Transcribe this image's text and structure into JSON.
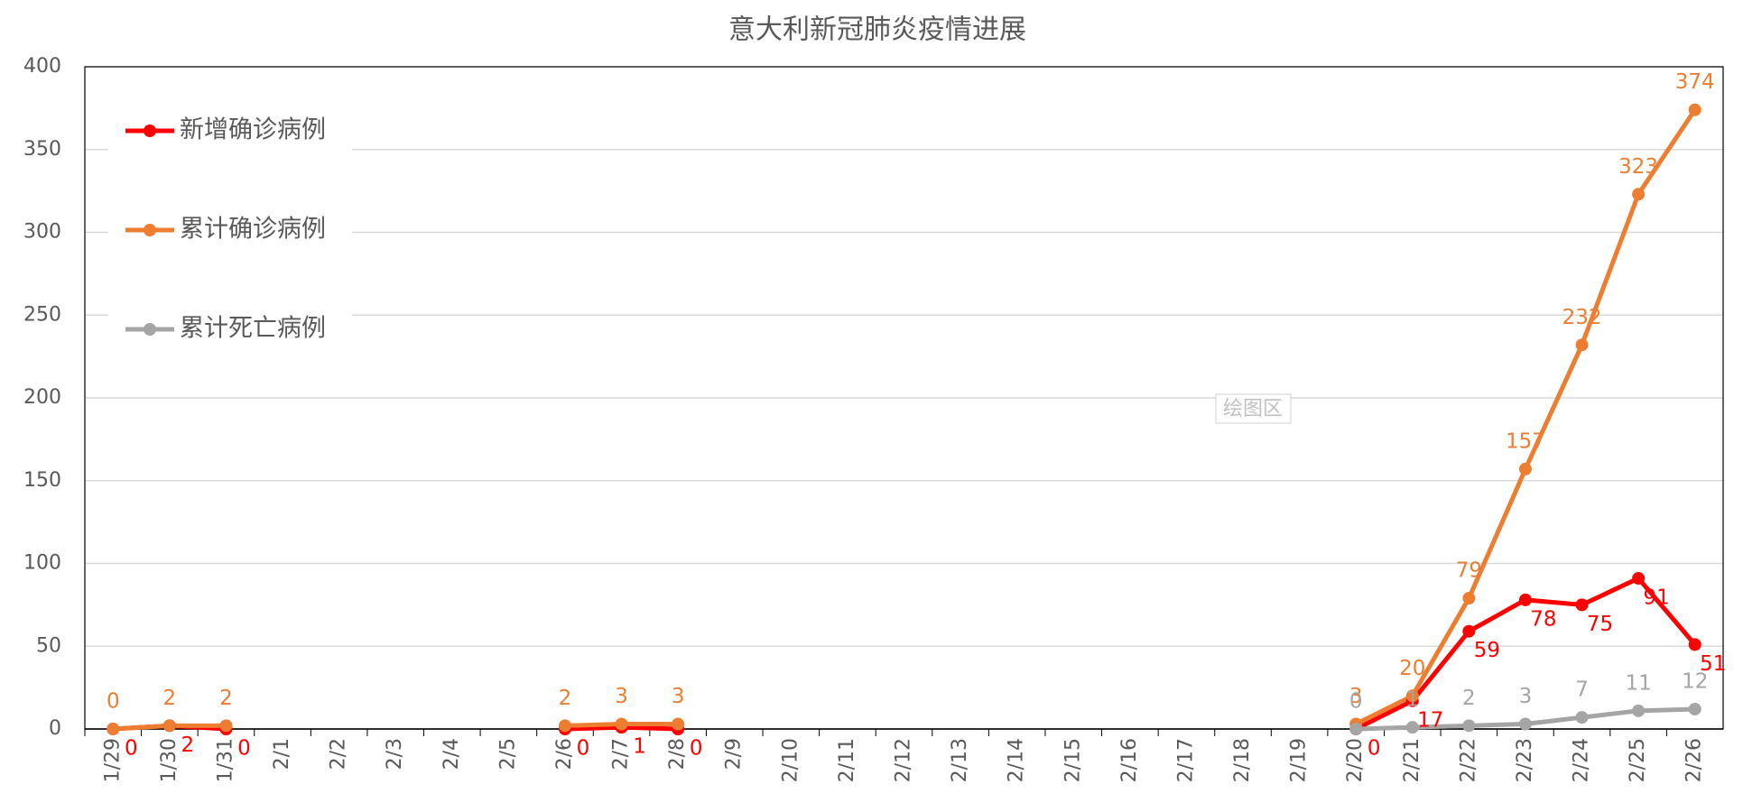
{
  "chart_data": {
    "type": "line",
    "title": "意大利新冠肺炎疫情进展",
    "categories": [
      "1/29",
      "1/30",
      "1/31",
      "2/1",
      "2/2",
      "2/3",
      "2/4",
      "2/5",
      "2/6",
      "2/7",
      "2/8",
      "2/9",
      "2/10",
      "2/11",
      "2/12",
      "2/13",
      "2/14",
      "2/15",
      "2/16",
      "2/17",
      "2/18",
      "2/19",
      "2/20",
      "2/21",
      "2/22",
      "2/23",
      "2/24",
      "2/25",
      "2/26"
    ],
    "series": [
      {
        "name": "新增确诊病例",
        "color": "#ff0000",
        "values": [
          0,
          2,
          0,
          null,
          null,
          null,
          null,
          null,
          0,
          1,
          0,
          null,
          null,
          null,
          null,
          null,
          null,
          null,
          null,
          null,
          null,
          null,
          0,
          17,
          59,
          78,
          75,
          91,
          51
        ]
      },
      {
        "name": "累计确诊病例",
        "color": "#ed7d31",
        "values": [
          0,
          2,
          2,
          null,
          null,
          null,
          null,
          null,
          2,
          3,
          3,
          null,
          null,
          null,
          null,
          null,
          null,
          null,
          null,
          null,
          null,
          null,
          3,
          20,
          79,
          157,
          232,
          323,
          374
        ]
      },
      {
        "name": "累计死亡病例",
        "color": "#a5a5a5",
        "values": [
          null,
          null,
          null,
          null,
          null,
          null,
          null,
          null,
          null,
          null,
          null,
          null,
          null,
          null,
          null,
          null,
          null,
          null,
          null,
          null,
          null,
          null,
          0,
          1,
          2,
          3,
          7,
          11,
          12
        ]
      }
    ],
    "ylim": [
      0,
      400
    ],
    "yticks": [
      0,
      50,
      100,
      150,
      200,
      250,
      300,
      350,
      400
    ],
    "grid": true,
    "legend": "upper left",
    "annotation": "绘图区"
  }
}
